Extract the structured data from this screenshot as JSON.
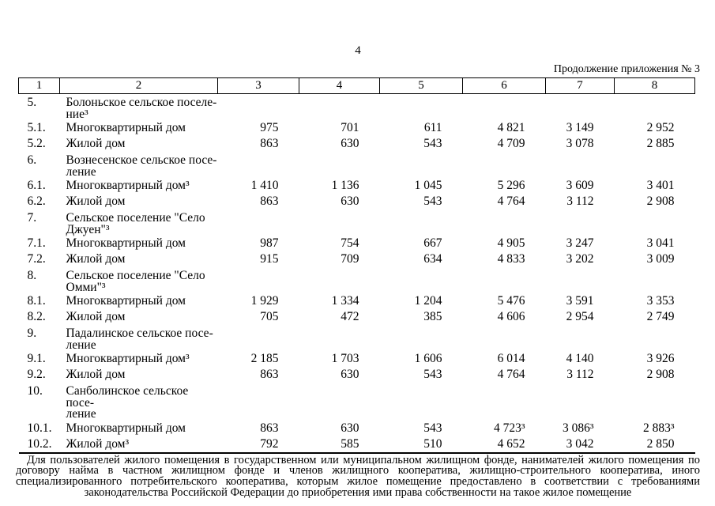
{
  "page": {
    "page_number": "4",
    "continuation": "Продолжение приложения № 3"
  },
  "table": {
    "column_headers": [
      "1",
      "2",
      "3",
      "4",
      "5",
      "6",
      "7",
      "8"
    ],
    "rows": [
      {
        "num": "5.",
        "name": "Болоньское сельское поселе-\nние³",
        "section": true,
        "values": [
          "",
          "",
          "",
          "",
          "",
          ""
        ]
      },
      {
        "num": "5.1.",
        "name": "Многоквартирный дом",
        "section": false,
        "values": [
          "975",
          "701",
          "611",
          "4 821",
          "3 149",
          "2 952"
        ]
      },
      {
        "num": "5.2.",
        "name": "Жилой дом",
        "section": false,
        "values": [
          "863",
          "630",
          "543",
          "4 709",
          "3 078",
          "2 885"
        ]
      },
      {
        "num": "6.",
        "name": "Вознесенское сельское посе-\nление",
        "section": true,
        "values": [
          "",
          "",
          "",
          "",
          "",
          ""
        ]
      },
      {
        "num": "6.1.",
        "name": "Многоквартирный дом³",
        "section": false,
        "values": [
          "1 410",
          "1 136",
          "1 045",
          "5 296",
          "3 609",
          "3 401"
        ]
      },
      {
        "num": "6.2.",
        "name": "Жилой дом",
        "section": false,
        "values": [
          "863",
          "630",
          "543",
          "4 764",
          "3 112",
          "2 908"
        ]
      },
      {
        "num": "7.",
        "name": "Сельское поселение \"Село\nДжуен\"³",
        "section": true,
        "values": [
          "",
          "",
          "",
          "",
          "",
          ""
        ]
      },
      {
        "num": "7.1.",
        "name": "Многоквартирный дом",
        "section": false,
        "values": [
          "987",
          "754",
          "667",
          "4 905",
          "3 247",
          "3 041"
        ]
      },
      {
        "num": "7.2.",
        "name": "Жилой дом",
        "section": false,
        "values": [
          "915",
          "709",
          "634",
          "4 833",
          "3 202",
          "3 009"
        ]
      },
      {
        "num": "8.",
        "name": "Сельское поселение \"Село\nОмми\"³",
        "section": true,
        "values": [
          "",
          "",
          "",
          "",
          "",
          ""
        ]
      },
      {
        "num": "8.1.",
        "name": "Многоквартирный дом",
        "section": false,
        "values": [
          "1 929",
          "1 334",
          "1 204",
          "5 476",
          "3 591",
          "3 353"
        ]
      },
      {
        "num": "8.2.",
        "name": "Жилой дом",
        "section": false,
        "values": [
          "705",
          "472",
          "385",
          "4 606",
          "2 954",
          "2 749"
        ]
      },
      {
        "num": "9.",
        "name": "Падалинское сельское посе-\nление",
        "section": true,
        "values": [
          "",
          "",
          "",
          "",
          "",
          ""
        ]
      },
      {
        "num": "9.1.",
        "name": "Многоквартирный дом³",
        "section": false,
        "values": [
          "2 185",
          "1 703",
          "1 606",
          "6 014",
          "4 140",
          "3 926"
        ]
      },
      {
        "num": "9.2.",
        "name": "Жилой дом",
        "section": false,
        "values": [
          "863",
          "630",
          "543",
          "4 764",
          "3 112",
          "2 908"
        ]
      },
      {
        "num": "10.",
        "name": "Санболинское сельское посе-\nление",
        "section": true,
        "values": [
          "",
          "",
          "",
          "",
          "",
          ""
        ]
      },
      {
        "num": "10.1.",
        "name": "Многоквартирный дом",
        "section": false,
        "values": [
          "863",
          "630",
          "543",
          "4 723³",
          "3 086³",
          "2 883³"
        ]
      },
      {
        "num": "10.2.",
        "name": "Жилой дом³",
        "section": false,
        "values": [
          "792",
          "585",
          "510",
          "4 652",
          "3 042",
          "2 850"
        ]
      }
    ]
  },
  "footnote": "Для пользователей жилого помещения в государственном или муниципальном жилищном фонде, нанимателей жилого помещения по договору найма в частном жилищном фонде и членов жилищного кооператива, жилищно-строительного кооператива, иного специализированного потребительского кооператива, которым жилое помещение предоставлено в соответствии с требованиями законодательства Российской Федерации до приобретения ими права собственности на такое жилое помещение"
}
